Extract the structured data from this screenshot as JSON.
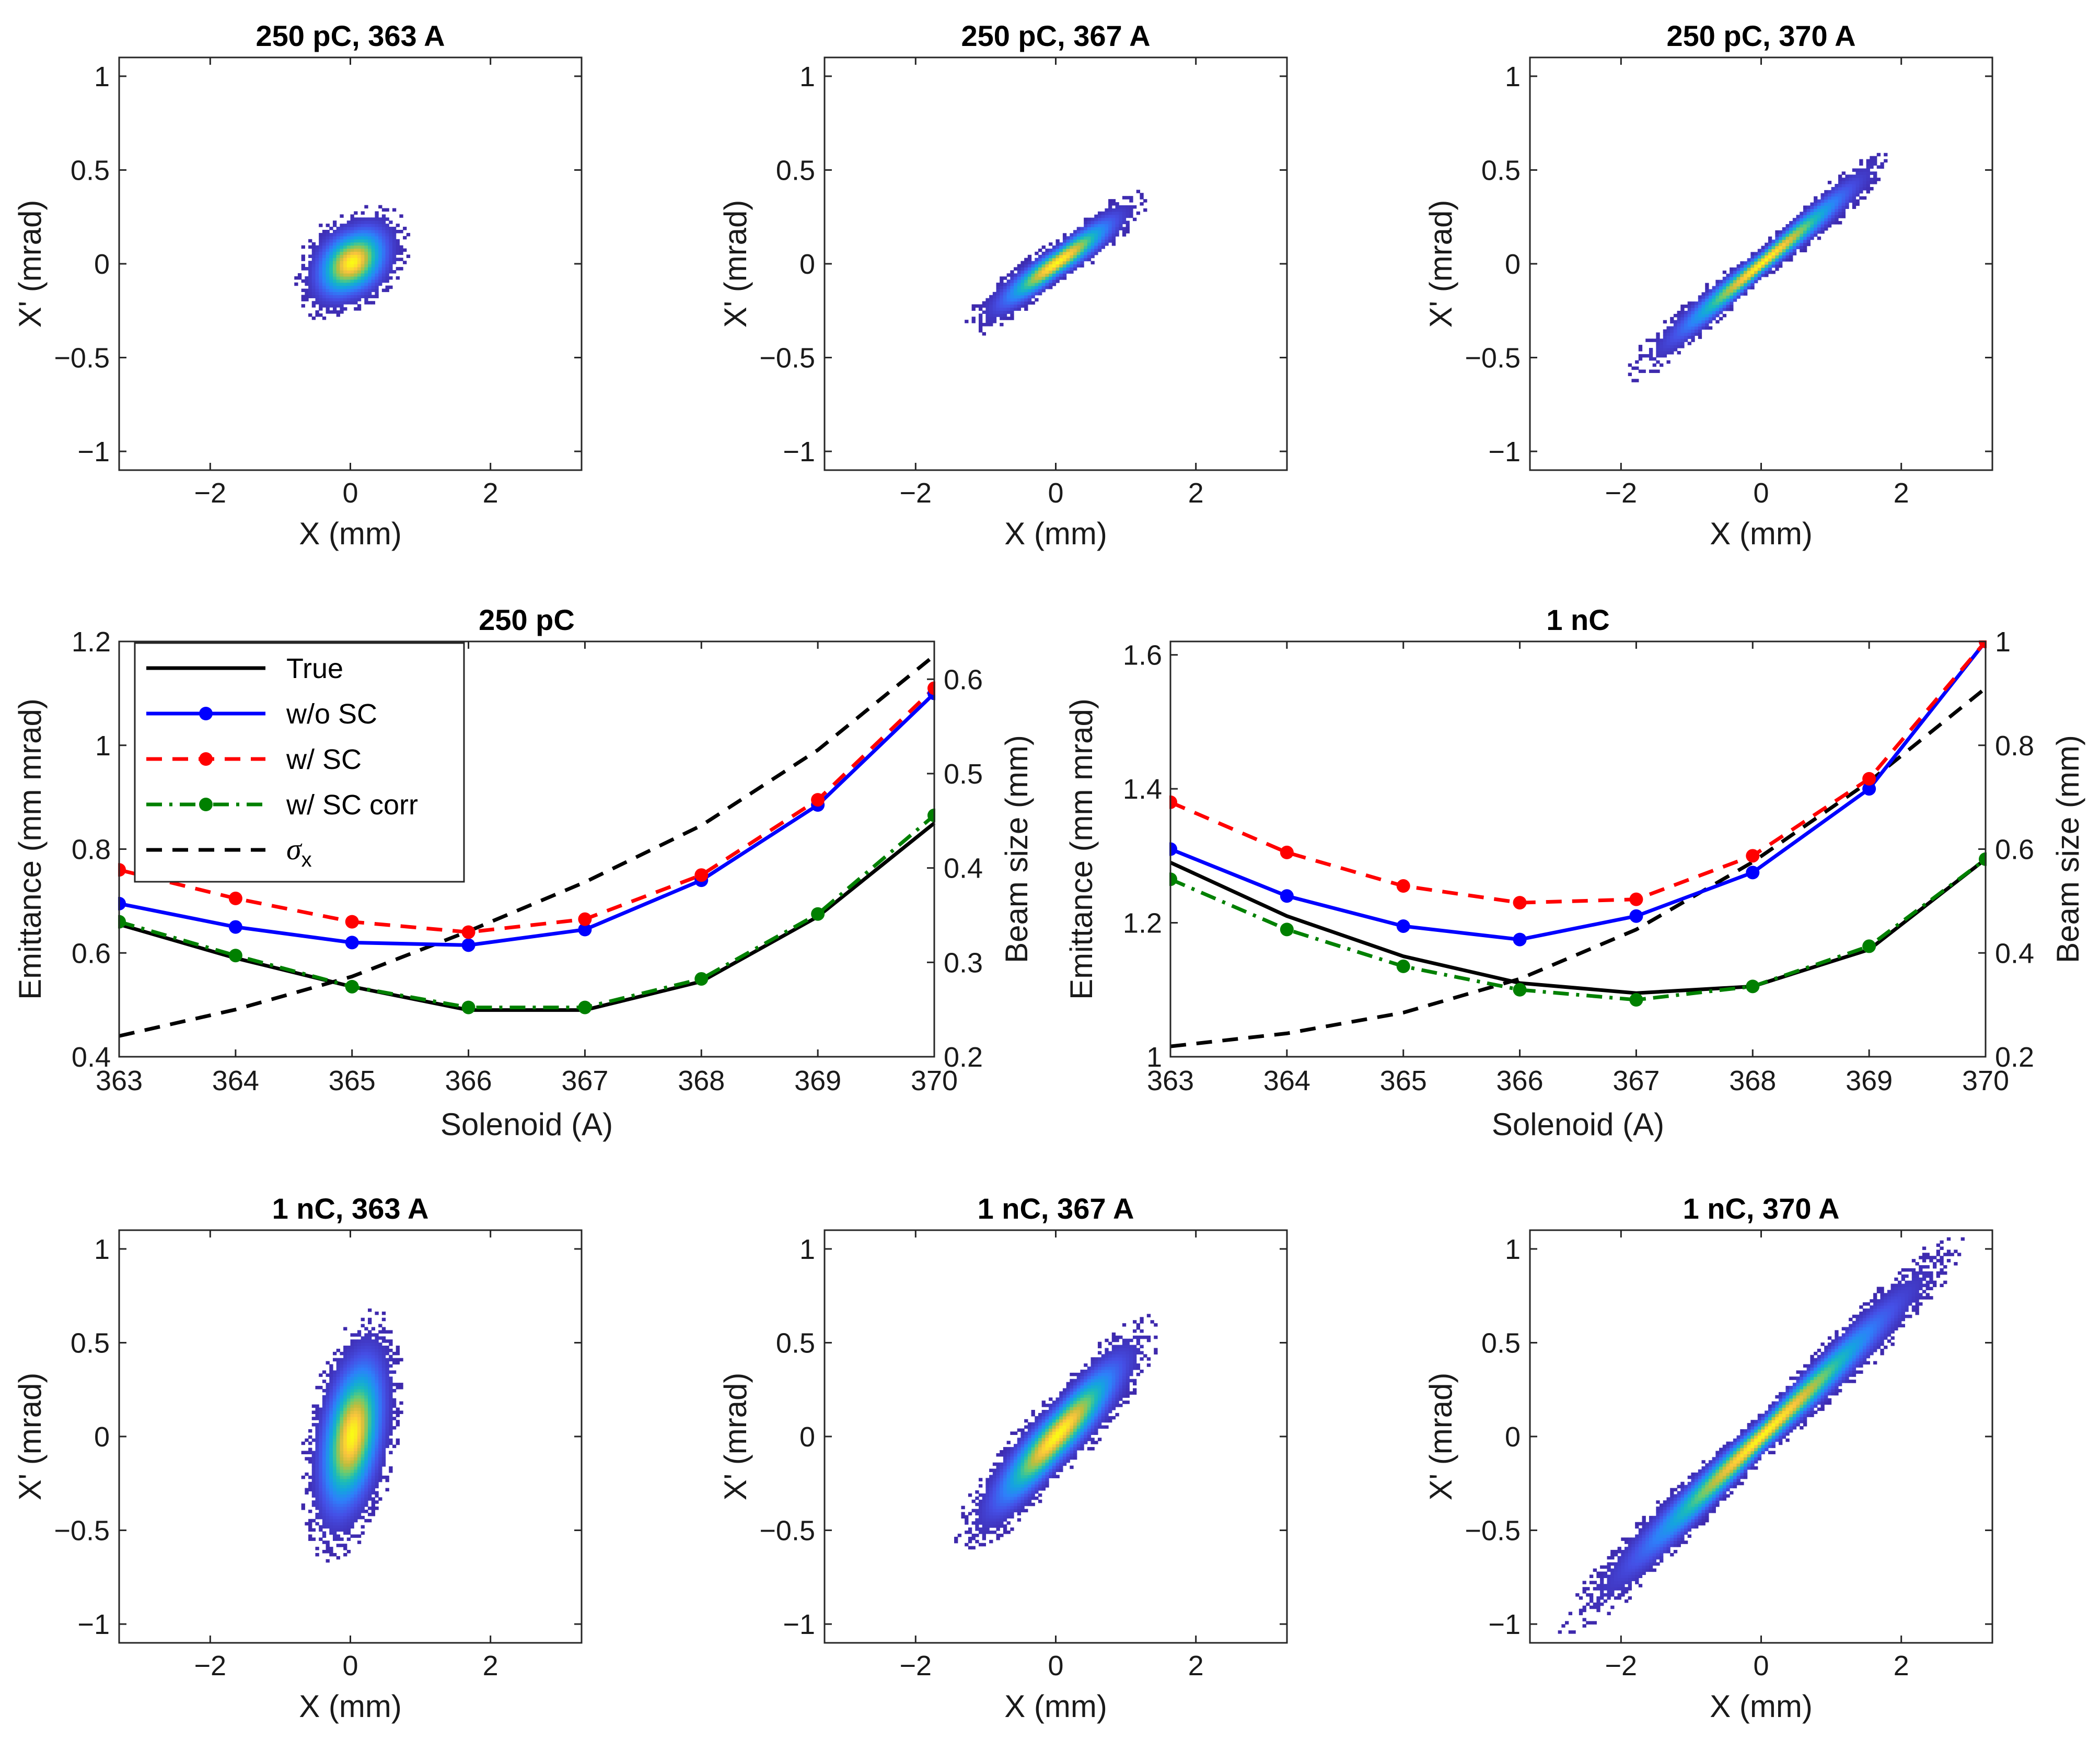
{
  "chart_data": [
    {
      "type": "heatmap",
      "title": "250 pC, 363 A",
      "xlabel": "X (mm)",
      "ylabel": "X' (mrad)",
      "xlim": [
        -3.3,
        3.3
      ],
      "ylim": [
        -1.1,
        1.1
      ],
      "xticks": [
        -2,
        0,
        2
      ],
      "yticks": [
        -1,
        -0.5,
        0,
        0.5,
        1
      ],
      "distribution": {
        "slope": 0.12,
        "sigma_x": 0.28,
        "sigma_y": 0.1,
        "x_range": [
          -1.1,
          1.3
        ],
        "yp_range": [
          -0.38,
          0.38
        ]
      }
    },
    {
      "type": "heatmap",
      "title": "250 pC, 367 A",
      "xlabel": "X (mm)",
      "ylabel": "X' (mrad)",
      "xlim": [
        -3.3,
        3.3
      ],
      "ylim": [
        -1.1,
        1.1
      ],
      "xticks": [
        -2,
        0,
        2
      ],
      "yticks": [
        -1,
        -0.5,
        0,
        0.5,
        1
      ],
      "distribution": {
        "slope": 0.26,
        "sigma_x": 0.45,
        "sigma_y": 0.045,
        "x_range": [
          -1.6,
          1.5
        ],
        "yp_range": [
          -0.48,
          0.43
        ]
      }
    },
    {
      "type": "heatmap",
      "title": "250 pC, 370 A",
      "xlabel": "X (mm)",
      "ylabel": "X' (mrad)",
      "xlim": [
        -3.3,
        3.3
      ],
      "ylim": [
        -1.1,
        1.1
      ],
      "xticks": [
        -2,
        0,
        2
      ],
      "yticks": [
        -1,
        -0.5,
        0,
        0.5,
        1
      ],
      "distribution": {
        "slope": 0.31,
        "sigma_x": 0.68,
        "sigma_y": 0.035,
        "x_range": [
          -2.1,
          2.0
        ],
        "yp_range": [
          -0.63,
          0.58
        ]
      }
    },
    {
      "type": "line",
      "title": "250 pC",
      "xlabel": "Solenoid (A)",
      "ylabel": "Emittance (mm mrad)",
      "y2label": "Beam size (mm)",
      "x": [
        363,
        364,
        365,
        366,
        367,
        368,
        369,
        370
      ],
      "xlim": [
        363,
        370
      ],
      "ylim": [
        0.4,
        1.2
      ],
      "y2lim": [
        0.2,
        0.64
      ],
      "xticks": [
        363,
        364,
        365,
        366,
        367,
        368,
        369,
        370
      ],
      "yticks": [
        0.4,
        0.6,
        0.8,
        1.0,
        1.2
      ],
      "ytick_labels": [
        "0.4",
        "0.6",
        "0.8",
        "1",
        "1.2"
      ],
      "y2ticks": [
        0.2,
        0.3,
        0.4,
        0.5,
        0.6
      ],
      "y2tick_labels": [
        "0.2",
        "0.3",
        "0.4",
        "0.5",
        "0.6"
      ],
      "legend": {
        "position": "top-left"
      },
      "series": [
        {
          "name": "True",
          "axis": "left",
          "color": "#000000",
          "dash": "solid",
          "markers": false,
          "values": [
            0.655,
            0.59,
            0.535,
            0.49,
            0.49,
            0.545,
            0.67,
            0.85
          ]
        },
        {
          "name": "w/o SC",
          "axis": "left",
          "color": "#0000ff",
          "dash": "solid",
          "markers": true,
          "values": [
            0.695,
            0.65,
            0.62,
            0.615,
            0.645,
            0.74,
            0.885,
            1.1
          ]
        },
        {
          "name": "w/ SC",
          "axis": "left",
          "color": "#ff0000",
          "dash": "dashed",
          "markers": true,
          "values": [
            0.76,
            0.705,
            0.66,
            0.64,
            0.665,
            0.75,
            0.895,
            1.11
          ]
        },
        {
          "name": "w/ SC corr",
          "axis": "left",
          "color": "#008000",
          "dash": "dashdot",
          "markers": true,
          "values": [
            0.66,
            0.595,
            0.535,
            0.495,
            0.495,
            0.55,
            0.675,
            0.865
          ]
        },
        {
          "name": "σx",
          "axis": "right",
          "color": "#000000",
          "dash": "dashed",
          "markers": false,
          "values": [
            0.222,
            0.25,
            0.285,
            0.333,
            0.385,
            0.445,
            0.525,
            0.625
          ]
        }
      ]
    },
    {
      "type": "line",
      "title": "1 nC",
      "xlabel": "Solenoid (A)",
      "ylabel": "Emittance (mm mrad)",
      "y2label": "Beam size (mm)",
      "x": [
        363,
        364,
        365,
        366,
        367,
        368,
        369,
        370
      ],
      "xlim": [
        363,
        370
      ],
      "ylim": [
        1.0,
        1.62
      ],
      "y2lim": [
        0.2,
        1.0
      ],
      "xticks": [
        363,
        364,
        365,
        366,
        367,
        368,
        369,
        370
      ],
      "yticks": [
        1.0,
        1.2,
        1.4,
        1.6
      ],
      "ytick_labels": [
        "1",
        "1.2",
        "1.4",
        "1.6"
      ],
      "y2ticks": [
        0.2,
        0.4,
        0.6,
        0.8,
        1.0
      ],
      "y2tick_labels": [
        "0.2",
        "0.4",
        "0.6",
        "0.8",
        "1"
      ],
      "series": [
        {
          "name": "True",
          "axis": "left",
          "color": "#000000",
          "dash": "solid",
          "markers": false,
          "values": [
            1.29,
            1.21,
            1.15,
            1.11,
            1.095,
            1.105,
            1.16,
            1.295
          ]
        },
        {
          "name": "w/o SC",
          "axis": "left",
          "color": "#0000ff",
          "dash": "solid",
          "markers": true,
          "values": [
            1.31,
            1.24,
            1.195,
            1.175,
            1.21,
            1.275,
            1.4,
            1.62
          ]
        },
        {
          "name": "w/ SC",
          "axis": "left",
          "color": "#ff0000",
          "dash": "dashed",
          "markers": true,
          "values": [
            1.38,
            1.305,
            1.255,
            1.23,
            1.235,
            1.3,
            1.415,
            1.62
          ]
        },
        {
          "name": "w/ SC corr",
          "axis": "left",
          "color": "#008000",
          "dash": "dashdot",
          "markers": true,
          "values": [
            1.265,
            1.19,
            1.135,
            1.1,
            1.085,
            1.105,
            1.165,
            1.295
          ]
        },
        {
          "name": "σx",
          "axis": "right",
          "color": "#000000",
          "dash": "dashed",
          "markers": false,
          "values": [
            0.22,
            0.245,
            0.285,
            0.35,
            0.445,
            0.575,
            0.73,
            0.91
          ]
        }
      ]
    },
    {
      "type": "heatmap",
      "title": "1 nC, 363 A",
      "xlabel": "X (mm)",
      "ylabel": "X' (mrad)",
      "xlim": [
        -3.3,
        3.3
      ],
      "ylim": [
        -1.1,
        1.1
      ],
      "xticks": [
        -2,
        0,
        2
      ],
      "yticks": [
        -1,
        -0.5,
        0,
        0.5,
        1
      ],
      "distribution": {
        "slope": 0.35,
        "sigma_x": 0.25,
        "sigma_y": 0.22,
        "x_range": [
          -0.9,
          1.1
        ],
        "yp_range": [
          -0.72,
          0.72
        ]
      }
    },
    {
      "type": "heatmap",
      "title": "1 nC, 367 A",
      "xlabel": "X (mm)",
      "ylabel": "X' (mrad)",
      "xlim": [
        -3.3,
        3.3
      ],
      "ylim": [
        -1.1,
        1.1
      ],
      "xticks": [
        -2,
        0,
        2
      ],
      "yticks": [
        -1,
        -0.5,
        0,
        0.5,
        1
      ],
      "distribution": {
        "slope": 0.38,
        "sigma_x": 0.5,
        "sigma_y": 0.09,
        "x_range": [
          -1.6,
          1.7
        ],
        "yp_range": [
          -0.65,
          0.67
        ]
      }
    },
    {
      "type": "heatmap",
      "title": "1 nC, 370 A",
      "xlabel": "X (mm)",
      "ylabel": "X' (mrad)",
      "xlim": [
        -3.3,
        3.3
      ],
      "ylim": [
        -1.1,
        1.1
      ],
      "xticks": [
        -2,
        0,
        2
      ],
      "yticks": [
        -1,
        -0.5,
        0,
        0.5,
        1
      ],
      "distribution": {
        "slope": 0.36,
        "sigma_x": 1.0,
        "sigma_y": 0.05,
        "x_range": [
          -2.9,
          3.0
        ],
        "yp_range": [
          -1.05,
          1.08
        ]
      }
    }
  ]
}
